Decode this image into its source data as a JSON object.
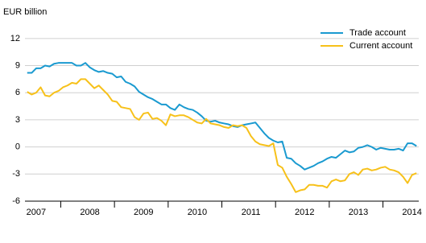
{
  "chart_data": {
    "type": "line",
    "y_label": "EUR billion",
    "categories": [
      null,
      null,
      "2007",
      null,
      null,
      null,
      null,
      null,
      null,
      null,
      null,
      null,
      null,
      null,
      "2008",
      null,
      null,
      null,
      null,
      null,
      null,
      null,
      null,
      null,
      null,
      null,
      "2009",
      null,
      null,
      null,
      null,
      null,
      null,
      null,
      null,
      null,
      null,
      null,
      "2010",
      null,
      null,
      null,
      null,
      null,
      null,
      null,
      null,
      null,
      null,
      null,
      "2011",
      null,
      null,
      null,
      null,
      null,
      null,
      null,
      null,
      null,
      null,
      null,
      "2012",
      null,
      null,
      null,
      null,
      null,
      null,
      null,
      null,
      null,
      null,
      null,
      "2013",
      null,
      null,
      null,
      null,
      null,
      null,
      null,
      null,
      null,
      null,
      null,
      "2014",
      null
    ],
    "series": [
      {
        "name": "Trade account",
        "color": "#1a9ad0",
        "values": [
          8.2,
          8.2,
          8.7,
          8.7,
          9.0,
          8.9,
          9.2,
          9.3,
          9.3,
          9.3,
          9.3,
          9.0,
          9.0,
          9.3,
          8.8,
          8.5,
          8.3,
          8.4,
          8.2,
          8.1,
          7.7,
          7.8,
          7.2,
          7.0,
          6.7,
          6.1,
          5.8,
          5.5,
          5.3,
          5.0,
          4.7,
          4.7,
          4.3,
          4.1,
          4.7,
          4.4,
          4.2,
          4.1,
          3.8,
          3.4,
          2.9,
          2.8,
          2.9,
          2.7,
          2.6,
          2.5,
          2.3,
          2.2,
          2.4,
          2.5,
          2.6,
          2.7,
          2.1,
          1.5,
          1.0,
          0.7,
          0.5,
          0.6,
          -1.2,
          -1.3,
          -1.8,
          -2.1,
          -2.5,
          -2.3,
          -2.1,
          -1.8,
          -1.6,
          -1.3,
          -1.1,
          -1.2,
          -0.8,
          -0.4,
          -0.6,
          -0.5,
          -0.1,
          0.0,
          0.2,
          0.0,
          -0.3,
          -0.1,
          -0.2,
          -0.3,
          -0.3,
          -0.2,
          -0.4,
          0.4,
          0.4,
          0.1
        ]
      },
      {
        "name": "Current account",
        "color": "#f7c11a",
        "values": [
          6.1,
          5.8,
          6.0,
          6.6,
          5.7,
          5.6,
          6.0,
          6.2,
          6.6,
          6.8,
          7.1,
          7.0,
          7.5,
          7.5,
          7.0,
          6.5,
          6.8,
          6.3,
          5.8,
          5.1,
          5.0,
          4.4,
          4.3,
          4.2,
          3.3,
          3.0,
          3.7,
          3.8,
          3.1,
          3.2,
          2.9,
          2.4,
          3.6,
          3.4,
          3.5,
          3.5,
          3.3,
          3.0,
          2.7,
          2.6,
          3.1,
          2.6,
          2.5,
          2.4,
          2.2,
          2.1,
          2.4,
          2.3,
          2.4,
          2.1,
          1.2,
          0.6,
          0.3,
          0.2,
          0.1,
          0.4,
          -2.0,
          -2.3,
          -3.3,
          -4.1,
          -5.0,
          -4.8,
          -4.7,
          -4.2,
          -4.2,
          -4.3,
          -4.3,
          -4.5,
          -3.8,
          -3.6,
          -3.8,
          -3.7,
          -3.0,
          -2.8,
          -3.1,
          -2.5,
          -2.4,
          -2.6,
          -2.5,
          -2.3,
          -2.2,
          -2.5,
          -2.6,
          -2.8,
          -3.3,
          -4.0,
          -3.1,
          -2.9
        ]
      }
    ],
    "ylim": [
      -6,
      13.5
    ],
    "yticks": [
      12,
      9,
      6,
      3,
      0,
      -3,
      -6
    ],
    "grid": true,
    "legend": "top-right"
  }
}
